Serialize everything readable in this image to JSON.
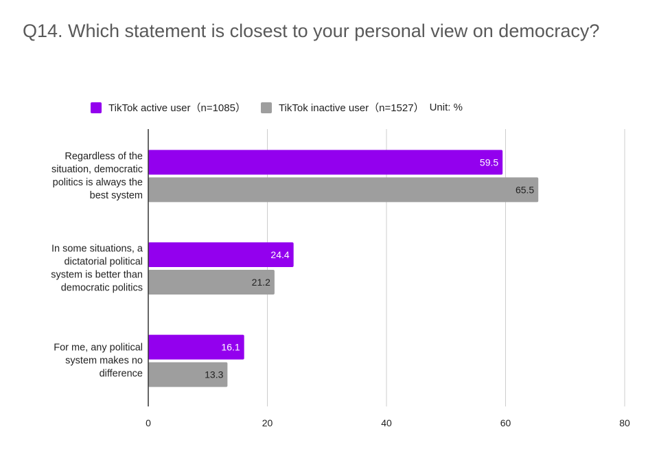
{
  "title": "Q14. Which statement is closest to your personal view on democracy?",
  "legend": {
    "active_label": "TikTok active user（n=1085）",
    "inactive_label": "TikTok inactive user（n=1527）",
    "unit": "Unit: %"
  },
  "colors": {
    "active": "#9300ee",
    "inactive": "#9e9e9e"
  },
  "chart_data": {
    "type": "bar",
    "orientation": "horizontal",
    "title": "Q14. Which statement is closest to your personal view on democracy?",
    "categories": [
      "Regardless of the situation, democratic politics is always the best system",
      "In some situations, a dictatorial political system is better than democratic politics",
      "For me, any political system makes no difference"
    ],
    "category_lines": [
      [
        "Regardless of the",
        "situation, democratic",
        "politics is always the",
        "best system"
      ],
      [
        "In some situations, a",
        "dictatorial political",
        "system is better than",
        "democratic politics"
      ],
      [
        "For me, any political",
        "system makes no",
        "difference"
      ]
    ],
    "series": [
      {
        "name": "TikTok active user（n=1085）",
        "values": [
          59.5,
          24.4,
          16.1
        ]
      },
      {
        "name": "TikTok inactive user（n=1527）",
        "values": [
          65.5,
          21.2,
          13.3
        ]
      }
    ],
    "xlim": [
      0,
      80
    ],
    "xticks": [
      0,
      20,
      40,
      60,
      80
    ],
    "grid": true,
    "legend_position": "top",
    "unit": "Unit: %"
  }
}
